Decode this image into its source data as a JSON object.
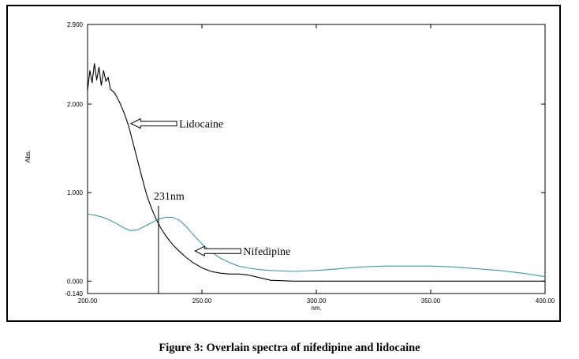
{
  "chart_data": {
    "type": "line",
    "title": "",
    "xlabel": "nm.",
    "ylabel": "Abs.",
    "xlim": [
      200,
      400
    ],
    "ylim": [
      -0.14,
      2.9
    ],
    "x_ticks": [
      "200.00",
      "250.00",
      "300.00",
      "350.00",
      "400.00"
    ],
    "y_ticks": [
      "2.900",
      "2.000",
      "1.000",
      "0.000",
      "-0.140"
    ],
    "grid": false,
    "series": [
      {
        "name": "Lidocaine",
        "color": "#000000",
        "x": [
          200,
          201,
          202,
          203,
          204,
          205,
          206,
          207,
          208,
          209,
          210,
          212,
          214,
          216,
          218,
          220,
          222,
          224,
          226,
          228,
          230,
          232,
          234,
          236,
          238,
          240,
          243,
          246,
          250,
          254,
          258,
          262,
          266,
          270,
          275,
          280,
          290,
          300,
          320,
          350,
          380,
          400
        ],
        "y": [
          2.15,
          2.38,
          2.24,
          2.46,
          2.27,
          2.42,
          2.21,
          2.38,
          2.26,
          2.3,
          2.17,
          2.12,
          2.02,
          1.9,
          1.75,
          1.55,
          1.35,
          1.15,
          0.96,
          0.82,
          0.7,
          0.6,
          0.52,
          0.45,
          0.39,
          0.34,
          0.27,
          0.21,
          0.15,
          0.11,
          0.09,
          0.08,
          0.08,
          0.07,
          0.04,
          0.01,
          0.0,
          0.0,
          0.0,
          0.0,
          0.0,
          0.0
        ]
      },
      {
        "name": "Nifedipine",
        "color": "#3d9aa6",
        "x": [
          200,
          204,
          208,
          212,
          216,
          219,
          222,
          225,
          228,
          231,
          234,
          237,
          240,
          243,
          246,
          250,
          254,
          258,
          262,
          266,
          270,
          275,
          280,
          290,
          300,
          310,
          320,
          330,
          340,
          350,
          360,
          370,
          380,
          390,
          400
        ],
        "y": [
          0.76,
          0.74,
          0.71,
          0.66,
          0.6,
          0.57,
          0.58,
          0.62,
          0.66,
          0.7,
          0.72,
          0.72,
          0.69,
          0.62,
          0.53,
          0.42,
          0.33,
          0.26,
          0.21,
          0.17,
          0.15,
          0.13,
          0.12,
          0.11,
          0.12,
          0.14,
          0.16,
          0.17,
          0.17,
          0.17,
          0.16,
          0.14,
          0.12,
          0.09,
          0.05
        ]
      }
    ],
    "annotations": {
      "lidocaine_label": "Lidocaine",
      "nifedipine_label": "Nifedipine",
      "wavelength_label": "231nm",
      "wavelength_x": 231,
      "lidocaine_arrow_at": [
        219,
        1.78
      ],
      "nifedipine_arrow_at": [
        247,
        0.34
      ]
    }
  },
  "caption": "Figure 3: Overlain spectra of nifedipine and lidocaine"
}
